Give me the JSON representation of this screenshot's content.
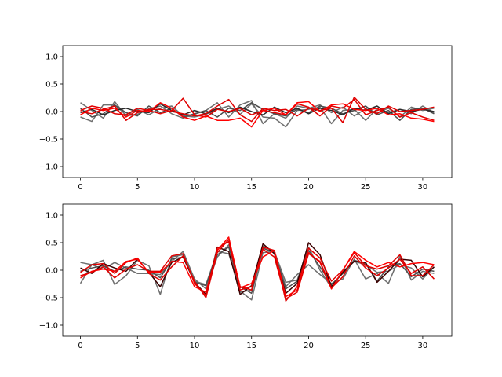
{
  "chart_data": [
    {
      "type": "line",
      "title": "",
      "xlabel": "",
      "ylabel": "",
      "xlim": [
        -1.55,
        32.55
      ],
      "ylim": [
        -1.2,
        1.2
      ],
      "xticks": [
        0,
        5,
        10,
        15,
        20,
        25,
        30
      ],
      "yticks": [
        -1.0,
        -0.5,
        0.0,
        0.5,
        1.0
      ],
      "xtick_labels": [
        "0",
        "5",
        "10",
        "15",
        "20",
        "25",
        "30"
      ],
      "ytick_labels": [
        "−1.0",
        "−0.5",
        "0.0",
        "0.5",
        "1.0"
      ],
      "grid": false,
      "x": [
        0,
        1,
        2,
        3,
        4,
        5,
        6,
        7,
        8,
        9,
        10,
        11,
        12,
        13,
        14,
        15,
        16,
        17,
        18,
        19,
        20,
        21,
        22,
        23,
        24,
        25,
        26,
        27,
        28,
        29,
        30,
        31
      ],
      "series": [
        {
          "color": "#6e6e6e",
          "values": [
            0.16,
            0.02,
            -0.12,
            0.18,
            -0.08,
            -0.05,
            0.05,
            0.1,
            -0.04,
            -0.12,
            -0.05,
            0.02,
            0.16,
            -0.1,
            0.12,
            0.2,
            -0.22,
            -0.04,
            -0.12,
            0.1,
            0.06,
            0.12,
            -0.02,
            0.08,
            -0.08,
            0.05,
            -0.02,
            0.06,
            -0.1,
            0.08,
            0.02,
            0.06
          ]
        },
        {
          "color": "#6e6e6e",
          "values": [
            -0.1,
            -0.18,
            0.12,
            0.12,
            -0.06,
            0.04,
            -0.06,
            0.06,
            0.1,
            -0.08,
            -0.1,
            -0.05,
            0.04,
            0.1,
            -0.05,
            0.14,
            -0.1,
            -0.12,
            -0.28,
            0.02,
            0.04,
            0.08,
            -0.22,
            0.02,
            0.04,
            -0.16,
            0.05,
            -0.02,
            0.04,
            -0.04,
            0.1,
            -0.02
          ]
        },
        {
          "color": "#4d4d4d",
          "values": [
            0.06,
            -0.1,
            -0.04,
            0.12,
            -0.02,
            -0.08,
            0.1,
            -0.02,
            0.06,
            -0.1,
            -0.04,
            0.02,
            -0.1,
            0.06,
            0.02,
            0.16,
            0.04,
            -0.04,
            -0.08,
            0.04,
            -0.02,
            0.1,
            0.06,
            -0.04,
            0.02,
            0.1,
            -0.06,
            0.02,
            -0.16,
            0.04,
            0.06,
            -0.04
          ]
        },
        {
          "color": "#2a2a2a",
          "values": [
            -0.02,
            0.04,
            -0.06,
            0.02,
            0.06,
            0.0,
            -0.02,
            0.14,
            0.02,
            -0.06,
            0.02,
            -0.04,
            0.06,
            -0.02,
            0.08,
            0.0,
            -0.06,
            0.08,
            -0.02,
            0.06,
            -0.04,
            0.06,
            0.02,
            -0.06,
            0.06,
            0.02,
            0.1,
            -0.04,
            0.04,
            0.0,
            0.04,
            0.0
          ]
        },
        {
          "color": "#e00000",
          "values": [
            0.02,
            0.1,
            0.06,
            -0.04,
            -0.06,
            0.06,
            0.02,
            -0.04,
            0.02,
            0.24,
            -0.06,
            -0.1,
            0.04,
            0.0,
            0.06,
            -0.06,
            0.02,
            -0.02,
            -0.06,
            0.14,
            0.08,
            -0.08,
            0.1,
            0.06,
            0.22,
            -0.06,
            0.02,
            0.08,
            -0.1,
            -0.02,
            -0.1,
            -0.16
          ]
        },
        {
          "color": "#ff0000",
          "values": [
            -0.06,
            0.06,
            0.02,
            0.06,
            -0.1,
            0.02,
            0.0,
            0.16,
            0.06,
            -0.1,
            -0.16,
            -0.08,
            -0.16,
            -0.16,
            -0.12,
            -0.28,
            0.02,
            0.06,
            -0.06,
            0.16,
            0.18,
            0.0,
            0.12,
            0.14,
            0.04,
            0.02,
            0.06,
            -0.06,
            -0.04,
            -0.12,
            -0.14,
            -0.18
          ]
        },
        {
          "color": "#e00000",
          "values": [
            0.0,
            -0.04,
            0.04,
            0.1,
            -0.16,
            -0.02,
            0.04,
            0.04,
            0.0,
            -0.04,
            -0.08,
            -0.04,
            0.1,
            0.22,
            -0.06,
            -0.18,
            0.06,
            0.02,
            0.04,
            -0.08,
            0.06,
            0.02,
            0.06,
            -0.2,
            0.26,
            0.04,
            -0.04,
            0.1,
            0.0,
            0.02,
            0.04,
            0.08
          ]
        }
      ]
    },
    {
      "type": "line",
      "title": "",
      "xlabel": "",
      "ylabel": "",
      "xlim": [
        -1.55,
        32.55
      ],
      "ylim": [
        -1.2,
        1.2
      ],
      "xticks": [
        0,
        5,
        10,
        15,
        20,
        25,
        30
      ],
      "yticks": [
        -1.0,
        -0.5,
        0.0,
        0.5,
        1.0
      ],
      "xtick_labels": [
        "0",
        "5",
        "10",
        "15",
        "20",
        "25",
        "30"
      ],
      "ytick_labels": [
        "−1.0",
        "−0.5",
        "0.0",
        "0.5",
        "1.0"
      ],
      "grid": false,
      "x": [
        0,
        1,
        2,
        3,
        4,
        5,
        6,
        7,
        8,
        9,
        10,
        11,
        12,
        13,
        14,
        15,
        16,
        17,
        18,
        19,
        20,
        21,
        22,
        23,
        24,
        25,
        26,
        27,
        28,
        29,
        30,
        31
      ],
      "series": [
        {
          "color": "#6e6e6e",
          "values": [
            -0.24,
            0.1,
            0.18,
            -0.26,
            -0.1,
            0.18,
            0.08,
            -0.44,
            0.24,
            0.28,
            -0.2,
            -0.26,
            0.34,
            0.3,
            -0.38,
            -0.54,
            0.32,
            0.34,
            -0.3,
            -0.08,
            0.1,
            -0.08,
            -0.24,
            -0.16,
            0.2,
            -0.16,
            -0.06,
            -0.24,
            0.26,
            -0.18,
            -0.02,
            -0.06
          ]
        },
        {
          "color": "#6e6e6e",
          "values": [
            0.14,
            0.1,
            0.02,
            0.14,
            0.04,
            -0.06,
            -0.06,
            -0.08,
            0.16,
            0.34,
            -0.16,
            -0.34,
            0.24,
            0.46,
            -0.4,
            -0.36,
            0.44,
            0.34,
            -0.22,
            -0.18,
            0.42,
            0.0,
            -0.32,
            -0.02,
            0.16,
            0.1,
            -0.04,
            -0.02,
            0.1,
            0.04,
            -0.16,
            0.06
          ]
        },
        {
          "color": "#4d4d4d",
          "values": [
            -0.02,
            0.04,
            0.08,
            -0.02,
            0.06,
            0.02,
            0.0,
            -0.14,
            0.2,
            0.24,
            -0.22,
            -0.28,
            0.28,
            0.42,
            -0.3,
            -0.42,
            0.4,
            0.32,
            -0.34,
            -0.2,
            0.36,
            0.06,
            -0.26,
            -0.06,
            0.18,
            0.12,
            -0.2,
            0.06,
            0.12,
            -0.12,
            0.02,
            -0.02
          ]
        },
        {
          "color": "#3a0000",
          "values": [
            0.04,
            -0.06,
            0.12,
            0.04,
            -0.02,
            0.2,
            -0.04,
            -0.3,
            0.14,
            0.24,
            -0.22,
            -0.44,
            0.42,
            0.34,
            -0.44,
            -0.28,
            0.48,
            0.3,
            -0.42,
            -0.24,
            0.5,
            0.28,
            -0.3,
            -0.04,
            0.16,
            0.14,
            -0.22,
            -0.02,
            0.2,
            0.18,
            -0.12,
            0.06
          ]
        },
        {
          "color": "#e00000",
          "values": [
            -0.04,
            0.1,
            0.12,
            -0.06,
            0.14,
            0.22,
            -0.06,
            -0.18,
            0.06,
            0.26,
            -0.2,
            -0.5,
            0.32,
            0.56,
            -0.3,
            -0.36,
            0.42,
            0.36,
            -0.56,
            -0.3,
            0.4,
            0.22,
            -0.2,
            0.0,
            0.32,
            0.08,
            0.02,
            0.08,
            0.28,
            -0.1,
            -0.1,
            0.1
          ]
        },
        {
          "color": "#ff0000",
          "values": [
            -0.14,
            -0.02,
            0.02,
            -0.02,
            0.16,
            0.2,
            -0.04,
            -0.04,
            0.16,
            0.14,
            -0.3,
            -0.4,
            0.36,
            0.6,
            -0.32,
            -0.24,
            0.24,
            0.36,
            -0.48,
            -0.36,
            0.32,
            0.14,
            -0.34,
            0.0,
            0.34,
            0.18,
            0.06,
            0.14,
            0.06,
            0.12,
            0.14,
            0.1
          ]
        },
        {
          "color": "#e00000",
          "values": [
            -0.1,
            -0.04,
            0.06,
            -0.14,
            0.02,
            0.1,
            -0.02,
            -0.02,
            0.26,
            0.3,
            -0.24,
            -0.46,
            0.4,
            0.52,
            -0.36,
            -0.3,
            0.38,
            0.24,
            -0.52,
            -0.4,
            0.3,
            0.16,
            -0.32,
            -0.12,
            0.26,
            0.04,
            -0.1,
            0.04,
            0.2,
            -0.06,
            0.06,
            -0.16
          ]
        }
      ]
    }
  ]
}
